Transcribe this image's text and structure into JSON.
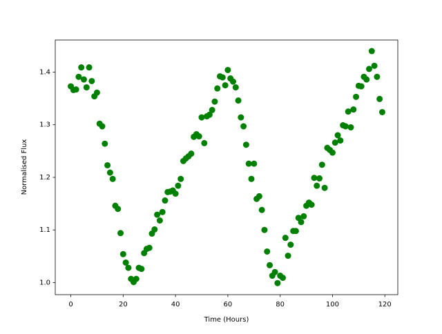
{
  "chart_data": {
    "type": "scatter",
    "xlabel": "Time (Hours)",
    "ylabel": "Normalised Flux",
    "color": "#008000",
    "x": [
      0,
      1,
      2,
      3,
      4,
      5,
      6,
      7,
      8,
      9,
      10,
      11,
      12,
      13,
      14,
      15,
      16,
      17,
      18,
      19,
      20,
      21,
      22,
      23,
      24,
      25,
      26,
      27,
      28,
      29,
      30,
      31,
      32,
      33,
      34,
      35,
      36,
      37,
      38,
      39,
      40,
      41,
      42,
      43,
      44,
      45,
      46,
      47,
      48,
      49,
      50,
      51,
      52,
      53,
      54,
      55,
      56,
      57,
      58,
      59,
      60,
      61,
      62,
      63,
      64,
      65,
      66,
      67,
      68,
      69,
      70,
      71,
      72,
      73,
      74,
      75,
      76,
      77,
      78,
      79,
      80,
      81,
      82,
      83,
      84,
      85,
      86,
      87,
      88,
      89,
      90,
      91,
      92,
      93,
      94,
      95,
      96,
      97,
      98,
      99,
      100,
      101,
      102,
      103,
      104,
      105,
      106,
      107,
      108,
      109,
      110,
      111,
      112,
      113,
      114,
      115,
      116,
      117,
      118,
      119
    ],
    "values": [
      1.373,
      1.366,
      1.367,
      1.391,
      1.409,
      1.386,
      1.371,
      1.409,
      1.383,
      1.354,
      1.361,
      1.302,
      1.297,
      1.264,
      1.223,
      1.209,
      1.197,
      1.146,
      1.14,
      1.094,
      1.054,
      1.038,
      1.028,
      1.007,
      1.001,
      1.007,
      1.028,
      1.026,
      1.056,
      1.064,
      1.066,
      1.093,
      1.101,
      1.129,
      1.118,
      1.134,
      1.156,
      1.172,
      1.173,
      1.175,
      1.169,
      1.184,
      1.197,
      1.231,
      1.236,
      1.24,
      1.245,
      1.277,
      1.282,
      1.278,
      1.314,
      1.265,
      1.316,
      1.319,
      1.328,
      1.344,
      1.369,
      1.392,
      1.39,
      1.375,
      1.404,
      1.388,
      1.382,
      1.371,
      1.346,
      1.314,
      1.297,
      1.262,
      1.226,
      1.197,
      1.226,
      1.159,
      1.164,
      1.138,
      1.1,
      1.059,
      1.033,
      1.013,
      1.02,
      0.999,
      1.013,
      1.009,
      1.085,
      1.051,
      1.072,
      1.098,
      1.098,
      1.123,
      1.115,
      1.126,
      1.146,
      1.152,
      1.148,
      1.199,
      1.184,
      1.198,
      1.224,
      1.18,
      1.256,
      1.252,
      1.247,
      1.266,
      1.28,
      1.27,
      1.299,
      1.297,
      1.325,
      1.295,
      1.329,
      1.353,
      1.374,
      1.373,
      1.391,
      1.386,
      1.406,
      1.44,
      1.412,
      1.391,
      1.349,
      1.324
    ],
    "xlim": [
      -5.95,
      124.95
    ],
    "xticks": [
      0,
      20,
      40,
      60,
      80,
      100,
      120
    ],
    "ylim": [
      0.977,
      1.461
    ],
    "yticks": [
      {
        "value": 1,
        "label": "1.0"
      },
      1.1,
      1.2,
      1.3,
      1.4
    ]
  }
}
